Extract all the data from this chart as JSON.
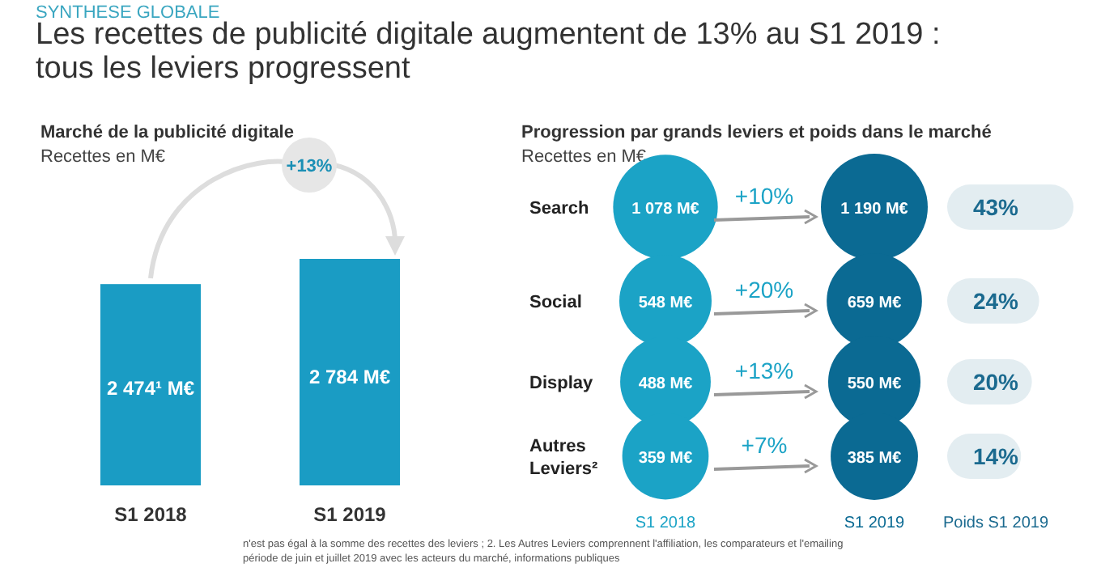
{
  "chart_data": [
    {
      "type": "bar",
      "title": "Les recettes de publicité digitale augmentent de 13% au S1 2019 : tous les leviers progressent",
      "subtitle": "Marché de la publicité digitale",
      "ylabel": "Recettes en M€",
      "categories": [
        "S1 2018",
        "S1 2019"
      ],
      "values": [
        2474,
        2784
      ],
      "value_labels": [
        "2 474¹ M€",
        "2 784 M€"
      ],
      "colors": [
        "#1a9cc4",
        "#1a9cc4"
      ],
      "annotations": [
        "SYNTHESE GLOBALE",
        "+13%",
        "n'est pas égal à la somme des recettes des leviers ; 2. Les Autres Leviers comprennent l'affiliation, les comparateurs et l'emailing",
        "période de juin et juillet 2019 avec les acteurs du marché, informations publiques"
      ]
    },
    {
      "type": "other",
      "title": "Progression par grands leviers et poids dans le marché",
      "ylabel": "Recettes en M€",
      "categories": [
        "Search",
        "Social",
        "Display",
        "Autres Leviers²"
      ],
      "series": [
        {
          "name": "S1 2018",
          "color": "#1ba3c6",
          "values": [
            1078,
            548,
            488,
            359
          ],
          "value_labels": [
            "1 078 M€",
            "548 M€",
            "488 M€",
            "359 M€"
          ]
        },
        {
          "name": "S1 2019",
          "color": "#0b6a93",
          "values": [
            1190,
            659,
            550,
            385
          ],
          "value_labels": [
            "1 190 M€",
            "659 M€",
            "550 M€",
            "385 M€"
          ]
        },
        {
          "name": "Poids S1 2019",
          "color": "#1b6a8f",
          "values": [
            43,
            24,
            20,
            14
          ],
          "value_labels": [
            "43%",
            "24%",
            "20%",
            "14%"
          ]
        }
      ],
      "annotations": [
        "+10%",
        "+20%",
        "+13%",
        "+7%"
      ]
    }
  ]
}
